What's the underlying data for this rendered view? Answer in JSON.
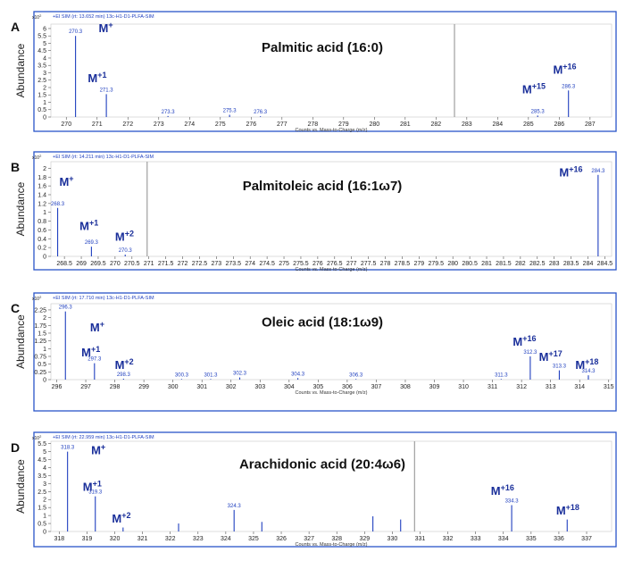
{
  "chart_data": [
    {
      "type": "bar",
      "panel_label": "A",
      "header": "+EI SIM (rt: 13.652 min) 13c-H1-D1-PLFA-SIM",
      "y_exponent": "x10",
      "y_exponent_power": "2",
      "ylabel": "Abundance",
      "xlabel": "Counts vs. Mass-to-Charge (m/z)",
      "title": "Palmitic acid (16:0)",
      "xlim": [
        269.5,
        287.7
      ],
      "ylim": [
        0,
        6.3
      ],
      "yticks": [
        "0",
        "0.5",
        "1",
        "1.5",
        "2",
        "2.5",
        "3",
        "3.5",
        "4",
        "4.5",
        "5",
        "5.5",
        "6"
      ],
      "xticks": [
        "270",
        "271",
        "272",
        "273",
        "274",
        "275",
        "276",
        "277",
        "278",
        "279",
        "280",
        "281",
        "282",
        "283",
        "284",
        "285",
        "286",
        "287"
      ],
      "peaks": [
        {
          "x": 270.3,
          "y": 5.5,
          "label": "270.3"
        },
        {
          "x": 271.3,
          "y": 1.55,
          "label": "271.3"
        },
        {
          "x": 273.3,
          "y": 0.07,
          "label": "273.3"
        },
        {
          "x": 275.3,
          "y": 0.15,
          "label": "275.3"
        },
        {
          "x": 276.3,
          "y": 0.05,
          "label": "276.3"
        },
        {
          "x": 285.3,
          "y": 0.1,
          "label": "285.3"
        },
        {
          "x": 286.3,
          "y": 1.8,
          "label": "286.3"
        }
      ],
      "extra_lines": [
        {
          "x": 282.6,
          "y": 6.3
        }
      ],
      "ion_labels": [
        {
          "x": 271.05,
          "y": 5.75,
          "base": "M",
          "sup": "+"
        },
        {
          "x": 270.7,
          "y": 2.35,
          "base": "M",
          "sup": "+1"
        },
        {
          "x": 284.8,
          "y": 1.6,
          "base": "M",
          "sup": "+15"
        },
        {
          "x": 285.8,
          "y": 2.95,
          "base": "M",
          "sup": "+16"
        }
      ]
    },
    {
      "type": "bar",
      "panel_label": "B",
      "header": "+EI SIM (rt: 14.211 min) 13c-H1-D1-PLFA-SIM",
      "y_exponent": "x10",
      "y_exponent_power": "2",
      "ylabel": "Abundance",
      "xlabel": "Counts vs. Mass-to-Charge (m/z)",
      "title": "Palmitoleic acid (16:1ω7)",
      "xlim": [
        268.1,
        284.7
      ],
      "ylim": [
        0,
        2.15
      ],
      "yticks": [
        "0",
        "0.2",
        "0.4",
        "0.6",
        "0.8",
        "1",
        "1.2",
        "1.4",
        "1.6",
        "1.8",
        "2"
      ],
      "xticks": [
        "268.5",
        "269",
        "269.5",
        "270",
        "270.5",
        "271",
        "271.5",
        "272",
        "272.5",
        "273",
        "273.5",
        "274",
        "274.5",
        "275",
        "275.5",
        "276",
        "276.5",
        "277",
        "277.5",
        "278",
        "278.5",
        "279",
        "279.5",
        "280",
        "280.5",
        "281",
        "281.5",
        "282",
        "282.5",
        "283",
        "283.5",
        "284",
        "284.5"
      ],
      "peaks": [
        {
          "x": 268.3,
          "y": 1.1,
          "label": "268.3"
        },
        {
          "x": 269.3,
          "y": 0.22,
          "label": "269.3"
        },
        {
          "x": 270.3,
          "y": 0.04,
          "label": "270.3"
        },
        {
          "x": 284.3,
          "y": 1.85,
          "label": "284.3"
        }
      ],
      "extra_lines": [
        {
          "x": 270.95,
          "y": 2.15
        }
      ],
      "ion_labels": [
        {
          "x": 268.35,
          "y": 1.6,
          "base": "M",
          "sup": "+"
        },
        {
          "x": 268.95,
          "y": 0.6,
          "base": "M",
          "sup": "+1"
        },
        {
          "x": 270.0,
          "y": 0.35,
          "base": "M",
          "sup": "+2"
        },
        {
          "x": 283.15,
          "y": 1.82,
          "base": "M",
          "sup": "+16"
        }
      ]
    },
    {
      "type": "bar",
      "panel_label": "C",
      "header": "+EI SIM (rt: 17.710 min) 13c-H1-D1-PLFA-SIM",
      "y_exponent": "x10",
      "y_exponent_power": "2",
      "ylabel": "Abundance",
      "xlabel": "Counts vs. Mass-to-Charge (m/z)",
      "title": "Oleic acid (18:1ω9)",
      "xlim": [
        295.8,
        315.1
      ],
      "ylim": [
        0,
        2.45
      ],
      "yticks": [
        "0",
        "0.25",
        "0.5",
        "0.75",
        "1",
        "1.25",
        "1.5",
        "1.75",
        "2",
        "2.25"
      ],
      "xticks": [
        "296",
        "297",
        "298",
        "299",
        "300",
        "301",
        "302",
        "303",
        "304",
        "305",
        "306",
        "307",
        "308",
        "309",
        "310",
        "311",
        "312",
        "313",
        "314",
        "315"
      ],
      "peaks": [
        {
          "x": 296.3,
          "y": 2.2,
          "label": "296.3"
        },
        {
          "x": 297.3,
          "y": 0.53,
          "label": "297.3"
        },
        {
          "x": 298.3,
          "y": 0.03,
          "label": "298.3"
        },
        {
          "x": 300.3,
          "y": 0.02,
          "label": "300.3"
        },
        {
          "x": 301.3,
          "y": 0.02,
          "label": "301.3"
        },
        {
          "x": 302.3,
          "y": 0.07,
          "label": "302.3"
        },
        {
          "x": 304.3,
          "y": 0.05,
          "label": "304.3"
        },
        {
          "x": 306.3,
          "y": 0.02,
          "label": "306.3"
        },
        {
          "x": 311.3,
          "y": 0.02,
          "label": "311.3"
        },
        {
          "x": 312.3,
          "y": 0.75,
          "label": "312.3"
        },
        {
          "x": 313.3,
          "y": 0.3,
          "label": "313.3"
        },
        {
          "x": 314.3,
          "y": 0.14,
          "label": "314.3"
        }
      ],
      "extra_lines": [],
      "ion_labels": [
        {
          "x": 297.15,
          "y": 1.55,
          "base": "M",
          "sup": "+"
        },
        {
          "x": 296.85,
          "y": 0.75,
          "base": "M",
          "sup": "+1"
        },
        {
          "x": 298.0,
          "y": 0.35,
          "base": "M",
          "sup": "+2"
        },
        {
          "x": 311.7,
          "y": 1.1,
          "base": "M",
          "sup": "+16"
        },
        {
          "x": 312.6,
          "y": 0.6,
          "base": "M",
          "sup": "+17"
        },
        {
          "x": 313.85,
          "y": 0.35,
          "base": "M",
          "sup": "+18"
        }
      ]
    },
    {
      "type": "bar",
      "panel_label": "D",
      "header": "+EI SIM (rt: 22.959 min) 13c-H1-D1-PLFA-SIM",
      "y_exponent": "x10",
      "y_exponent_power": "2",
      "ylabel": "Abundance",
      "xlabel": "Counts vs. Mass-to-Charge (m/z)",
      "title": "Arachidonic acid (20:4ω6)",
      "xlim": [
        317.7,
        337.9
      ],
      "ylim": [
        0,
        5.65
      ],
      "yticks": [
        "0",
        "0.5",
        "1",
        "1.5",
        "2",
        "2.5",
        "3",
        "3.5",
        "4",
        "4.5",
        "5",
        "5.5"
      ],
      "xticks": [
        "318",
        "319",
        "320",
        "321",
        "322",
        "323",
        "324",
        "325",
        "326",
        "327",
        "328",
        "329",
        "330",
        "331",
        "332",
        "333",
        "334",
        "335",
        "336",
        "337"
      ],
      "peaks": [
        {
          "x": 318.3,
          "y": 5.0,
          "label": "318.3"
        },
        {
          "x": 319.3,
          "y": 2.2,
          "label": "319.3"
        },
        {
          "x": 320.3,
          "y": 0.25,
          "label": ""
        },
        {
          "x": 322.3,
          "y": 0.5,
          "label": ""
        },
        {
          "x": 324.3,
          "y": 1.35,
          "label": "324.3"
        },
        {
          "x": 325.3,
          "y": 0.6,
          "label": ""
        },
        {
          "x": 329.3,
          "y": 0.95,
          "label": ""
        },
        {
          "x": 330.3,
          "y": 0.75,
          "label": ""
        },
        {
          "x": 334.3,
          "y": 1.65,
          "label": "334.3"
        },
        {
          "x": 336.3,
          "y": 0.75,
          "label": ""
        }
      ],
      "extra_lines": [
        {
          "x": 330.8,
          "y": 5.65
        }
      ],
      "ion_labels": [
        {
          "x": 319.15,
          "y": 4.85,
          "base": "M",
          "sup": "+"
        },
        {
          "x": 318.85,
          "y": 2.55,
          "base": "M",
          "sup": "+1"
        },
        {
          "x": 319.9,
          "y": 0.55,
          "base": "M",
          "sup": "+2"
        },
        {
          "x": 333.55,
          "y": 2.3,
          "base": "M",
          "sup": "+16"
        },
        {
          "x": 335.9,
          "y": 1.05,
          "base": "M",
          "sup": "+18"
        }
      ]
    }
  ]
}
